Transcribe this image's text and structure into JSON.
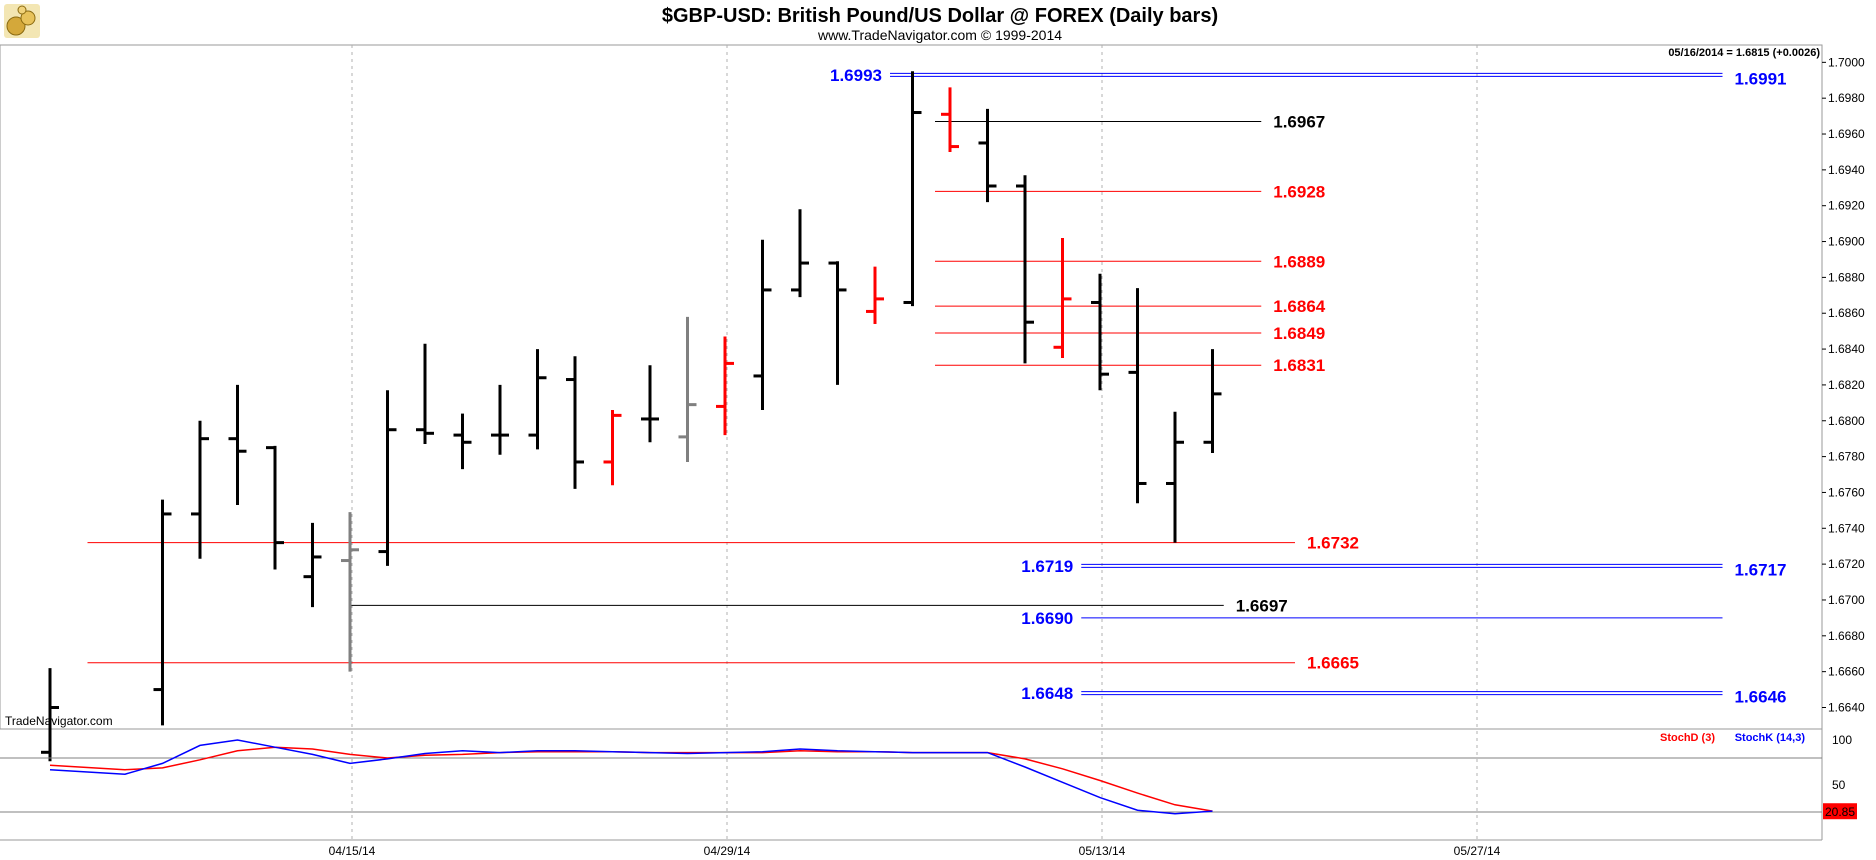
{
  "header": {
    "title": "$GBP-USD:  British Pound/US Dollar @ FOREX  (Daily bars)",
    "subtitle": "www.TradeNavigator.com © 1999-2014",
    "last_quote": "05/16/2014 = 1.6815 (+0.0026)",
    "watermark": "TradeNavigator.com"
  },
  "colors": {
    "up": "#000000",
    "down_red": "#ff0000",
    "gray": "#808080",
    "blue": "#0000ff",
    "grid": "#b0b0b0",
    "panel_bg": "#ffffff",
    "stoch_d": "#ff0000",
    "stoch_k": "#0000ff"
  },
  "chart_data": [
    {
      "type": "ohlc",
      "title": "$GBP-USD:  British Pound/US Dollar @ FOREX  (Daily bars)",
      "y_range": [
        1.6628,
        1.7008
      ],
      "y_ticks": [
        "1.7000",
        "1.6980",
        "1.6960",
        "1.6940",
        "1.6920",
        "1.6900",
        "1.6880",
        "1.6860",
        "1.6840",
        "1.6820",
        "1.6800",
        "1.6780",
        "1.6760",
        "1.6740",
        "1.6720",
        "1.6700",
        "1.6680",
        "1.6660",
        "1.6640"
      ],
      "x_labels": [
        {
          "label": "04/15/14",
          "index": 8
        },
        {
          "label": "04/29/14",
          "index": 18
        },
        {
          "label": "05/13/14",
          "index": 28
        },
        {
          "label": "05/27/14",
          "index": 38
        }
      ],
      "bars": [
        {
          "i": 0,
          "o": 1.6615,
          "h": 1.6662,
          "l": 1.661,
          "c": 1.664,
          "color": "black"
        },
        {
          "i": 3,
          "o": 1.665,
          "h": 1.6756,
          "l": 1.663,
          "c": 1.6748,
          "color": "black"
        },
        {
          "i": 4,
          "o": 1.6748,
          "h": 1.68,
          "l": 1.6723,
          "c": 1.679,
          "color": "black"
        },
        {
          "i": 5,
          "o": 1.679,
          "h": 1.682,
          "l": 1.6753,
          "c": 1.6783,
          "color": "black"
        },
        {
          "i": 6,
          "o": 1.6785,
          "h": 1.6786,
          "l": 1.6717,
          "c": 1.6732,
          "color": "black"
        },
        {
          "i": 7,
          "o": 1.6713,
          "h": 1.6743,
          "l": 1.6696,
          "c": 1.6724,
          "color": "black"
        },
        {
          "i": 8,
          "o": 1.6722,
          "h": 1.6749,
          "l": 1.666,
          "c": 1.6728,
          "color": "gray"
        },
        {
          "i": 9,
          "o": 1.6727,
          "h": 1.6817,
          "l": 1.6719,
          "c": 1.6795,
          "color": "black"
        },
        {
          "i": 10,
          "o": 1.6795,
          "h": 1.6843,
          "l": 1.6787,
          "c": 1.6793,
          "color": "black"
        },
        {
          "i": 11,
          "o": 1.6792,
          "h": 1.6804,
          "l": 1.6773,
          "c": 1.6788,
          "color": "black"
        },
        {
          "i": 12,
          "o": 1.6792,
          "h": 1.682,
          "l": 1.6781,
          "c": 1.6792,
          "color": "black"
        },
        {
          "i": 13,
          "o": 1.6792,
          "h": 1.684,
          "l": 1.6784,
          "c": 1.6824,
          "color": "black"
        },
        {
          "i": 14,
          "o": 1.6823,
          "h": 1.6836,
          "l": 1.6762,
          "c": 1.6777,
          "color": "black"
        },
        {
          "i": 15,
          "o": 1.6777,
          "h": 1.6806,
          "l": 1.6764,
          "c": 1.6803,
          "color": "red"
        },
        {
          "i": 16,
          "o": 1.6801,
          "h": 1.6831,
          "l": 1.6788,
          "c": 1.6801,
          "color": "black"
        },
        {
          "i": 17,
          "o": 1.6791,
          "h": 1.6858,
          "l": 1.6777,
          "c": 1.6809,
          "color": "gray"
        },
        {
          "i": 18,
          "o": 1.6808,
          "h": 1.6847,
          "l": 1.6792,
          "c": 1.6832,
          "color": "red"
        },
        {
          "i": 19,
          "o": 1.6825,
          "h": 1.6901,
          "l": 1.6806,
          "c": 1.6873,
          "color": "black"
        },
        {
          "i": 20,
          "o": 1.6873,
          "h": 1.6918,
          "l": 1.6869,
          "c": 1.6888,
          "color": "black"
        },
        {
          "i": 21,
          "o": 1.6888,
          "h": 1.6889,
          "l": 1.682,
          "c": 1.6873,
          "color": "black"
        },
        {
          "i": 22,
          "o": 1.6861,
          "h": 1.6886,
          "l": 1.6854,
          "c": 1.6868,
          "color": "red"
        },
        {
          "i": 23,
          "o": 1.6866,
          "h": 1.6995,
          "l": 1.6864,
          "c": 1.6972,
          "color": "black"
        },
        {
          "i": 24,
          "o": 1.6971,
          "h": 1.6986,
          "l": 1.695,
          "c": 1.6953,
          "color": "red"
        },
        {
          "i": 25,
          "o": 1.6955,
          "h": 1.6974,
          "l": 1.6922,
          "c": 1.6931,
          "color": "black"
        },
        {
          "i": 26,
          "o": 1.6931,
          "h": 1.6937,
          "l": 1.6832,
          "c": 1.6855,
          "color": "black"
        },
        {
          "i": 27,
          "o": 1.6841,
          "h": 1.6902,
          "l": 1.6835,
          "c": 1.6868,
          "color": "red"
        },
        {
          "i": 28,
          "o": 1.6866,
          "h": 1.6882,
          "l": 1.6817,
          "c": 1.6826,
          "color": "black"
        },
        {
          "i": 29,
          "o": 1.6827,
          "h": 1.6874,
          "l": 1.6754,
          "c": 1.6765,
          "color": "black"
        },
        {
          "i": 30,
          "o": 1.6765,
          "h": 1.6805,
          "l": 1.6732,
          "c": 1.6788,
          "color": "black"
        },
        {
          "i": 31,
          "o": 1.6788,
          "h": 1.684,
          "l": 1.6782,
          "c": 1.6815,
          "color": "black"
        }
      ],
      "levels": [
        {
          "value": 1.6993,
          "label": "1.6993",
          "color": "blue",
          "double": true,
          "i_from": 22.4,
          "i_to": 44.6,
          "label_side": "left"
        },
        {
          "value": 1.6991,
          "label": "1.6991",
          "color": "blue",
          "double": false,
          "i_from": 44.6,
          "i_to": 44.6,
          "label_side": "right"
        },
        {
          "value": 1.6967,
          "label": "1.6967",
          "color": "black",
          "double": false,
          "i_from": 23.6,
          "i_to": 32.3,
          "label_side": "right"
        },
        {
          "value": 1.6928,
          "label": "1.6928",
          "color": "red",
          "double": false,
          "i_from": 23.6,
          "i_to": 32.3,
          "label_side": "right"
        },
        {
          "value": 1.6889,
          "label": "1.6889",
          "color": "red",
          "double": false,
          "i_from": 23.6,
          "i_to": 32.3,
          "label_side": "right"
        },
        {
          "value": 1.6864,
          "label": "1.6864",
          "color": "red",
          "double": false,
          "i_from": 23.6,
          "i_to": 32.3,
          "label_side": "right"
        },
        {
          "value": 1.6849,
          "label": "1.6849",
          "color": "red",
          "double": false,
          "i_from": 23.6,
          "i_to": 32.3,
          "label_side": "right"
        },
        {
          "value": 1.6831,
          "label": "1.6831",
          "color": "red",
          "double": false,
          "i_from": 23.6,
          "i_to": 32.3,
          "label_side": "right"
        },
        {
          "value": 1.6732,
          "label": "1.6732",
          "color": "red",
          "double": false,
          "i_from": 1.0,
          "i_to": 33.2,
          "label_side": "right"
        },
        {
          "value": 1.6719,
          "label": "1.6719",
          "color": "blue",
          "double": true,
          "i_from": 27.5,
          "i_to": 44.6,
          "label_side": "left"
        },
        {
          "value": 1.6717,
          "label": "1.6717",
          "color": "blue",
          "double": false,
          "i_from": 44.6,
          "i_to": 44.6,
          "label_side": "right"
        },
        {
          "value": 1.6697,
          "label": "1.6697",
          "color": "black",
          "double": false,
          "i_from": 8.0,
          "i_to": 31.3,
          "label_side": "right"
        },
        {
          "value": 1.669,
          "label": "1.6690",
          "color": "blue",
          "double": false,
          "i_from": 27.5,
          "i_to": 44.6,
          "label_side": "left"
        },
        {
          "value": 1.6665,
          "label": "1.6665",
          "color": "red",
          "double": false,
          "i_from": 1.0,
          "i_to": 33.2,
          "label_side": "right"
        },
        {
          "value": 1.6648,
          "label": "1.6648",
          "color": "blue",
          "double": true,
          "i_from": 27.5,
          "i_to": 44.6,
          "label_side": "left"
        },
        {
          "value": 1.6646,
          "label": "1.6646",
          "color": "blue",
          "double": false,
          "i_from": 44.6,
          "i_to": 44.6,
          "label_side": "right"
        }
      ]
    },
    {
      "type": "line",
      "title": "",
      "legend": [
        "StochD (3)",
        "StochK (14,3)"
      ],
      "y_range": [
        0,
        100
      ],
      "y_ticks": [
        "100",
        "50"
      ],
      "current_value": "20.85",
      "ref_lines": [
        80,
        20
      ],
      "series": [
        {
          "name": "StochD (3)",
          "color": "red",
          "points": [
            [
              0,
              72
            ],
            [
              2,
              67
            ],
            [
              3,
              69
            ],
            [
              4,
              78
            ],
            [
              5,
              88
            ],
            [
              6,
              92
            ],
            [
              7,
              90
            ],
            [
              8,
              84
            ],
            [
              9,
              80
            ],
            [
              10,
              83
            ],
            [
              11,
              84
            ],
            [
              12,
              86
            ],
            [
              13,
              87
            ],
            [
              14,
              87
            ],
            [
              15,
              87
            ],
            [
              16,
              86
            ],
            [
              17,
              86
            ],
            [
              18,
              86
            ],
            [
              19,
              86
            ],
            [
              20,
              88
            ],
            [
              21,
              87
            ],
            [
              22,
              87
            ],
            [
              23,
              86
            ],
            [
              24,
              86
            ],
            [
              25,
              86
            ],
            [
              26,
              79
            ],
            [
              27,
              68
            ],
            [
              28,
              55
            ],
            [
              29,
              41
            ],
            [
              30,
              28
            ],
            [
              31,
              21
            ]
          ]
        },
        {
          "name": "StochK (14,3)",
          "color": "blue",
          "points": [
            [
              0,
              67
            ],
            [
              2,
              62
            ],
            [
              3,
              74
            ],
            [
              4,
              94
            ],
            [
              5,
              100
            ],
            [
              6,
              92
            ],
            [
              7,
              84
            ],
            [
              8,
              74
            ],
            [
              9,
              79
            ],
            [
              10,
              85
            ],
            [
              11,
              88
            ],
            [
              12,
              86
            ],
            [
              13,
              88
            ],
            [
              14,
              88
            ],
            [
              15,
              87
            ],
            [
              16,
              86
            ],
            [
              17,
              85
            ],
            [
              18,
              86
            ],
            [
              19,
              87
            ],
            [
              20,
              90
            ],
            [
              21,
              88
            ],
            [
              22,
              87
            ],
            [
              23,
              86
            ],
            [
              24,
              86
            ],
            [
              25,
              86
            ],
            [
              26,
              70
            ],
            [
              27,
              53
            ],
            [
              28,
              36
            ],
            [
              29,
              22
            ],
            [
              30,
              18
            ],
            [
              31,
              21
            ]
          ]
        }
      ]
    }
  ]
}
